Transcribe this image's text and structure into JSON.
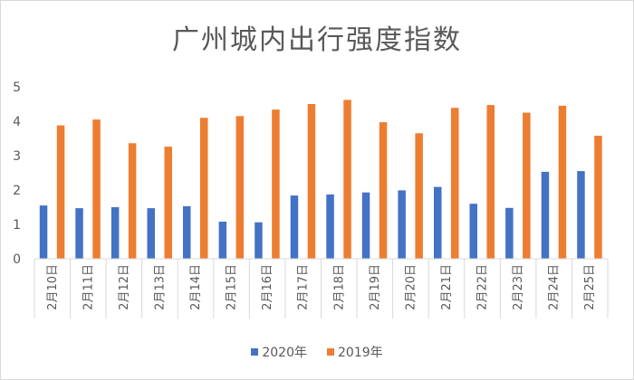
{
  "chart_data": {
    "type": "bar",
    "title": "广州城内出行强度指数",
    "categories": [
      "2月10日",
      "2月11日",
      "2月12日",
      "2月13日",
      "2月14日",
      "2月15日",
      "2月16日",
      "2月17日",
      "2月18日",
      "2月19日",
      "2月20日",
      "2月21日",
      "2月22日",
      "2月23日",
      "2月24日",
      "2月25日"
    ],
    "series": [
      {
        "name": "2020年",
        "color": "#4472c4",
        "values": [
          1.55,
          1.47,
          1.5,
          1.47,
          1.53,
          1.08,
          1.06,
          1.84,
          1.87,
          1.93,
          1.99,
          2.09,
          1.6,
          1.48,
          2.53,
          2.55
        ]
      },
      {
        "name": "2019年",
        "color": "#ed7d31",
        "values": [
          3.88,
          4.05,
          3.36,
          3.26,
          4.1,
          4.15,
          4.34,
          4.5,
          4.62,
          3.97,
          3.65,
          4.39,
          4.47,
          4.25,
          4.45,
          3.58
        ]
      }
    ],
    "yticks": [
      0,
      1,
      2,
      3,
      4,
      5
    ],
    "ylim": [
      0,
      5
    ],
    "grid": false,
    "legend_position": "bottom"
  }
}
